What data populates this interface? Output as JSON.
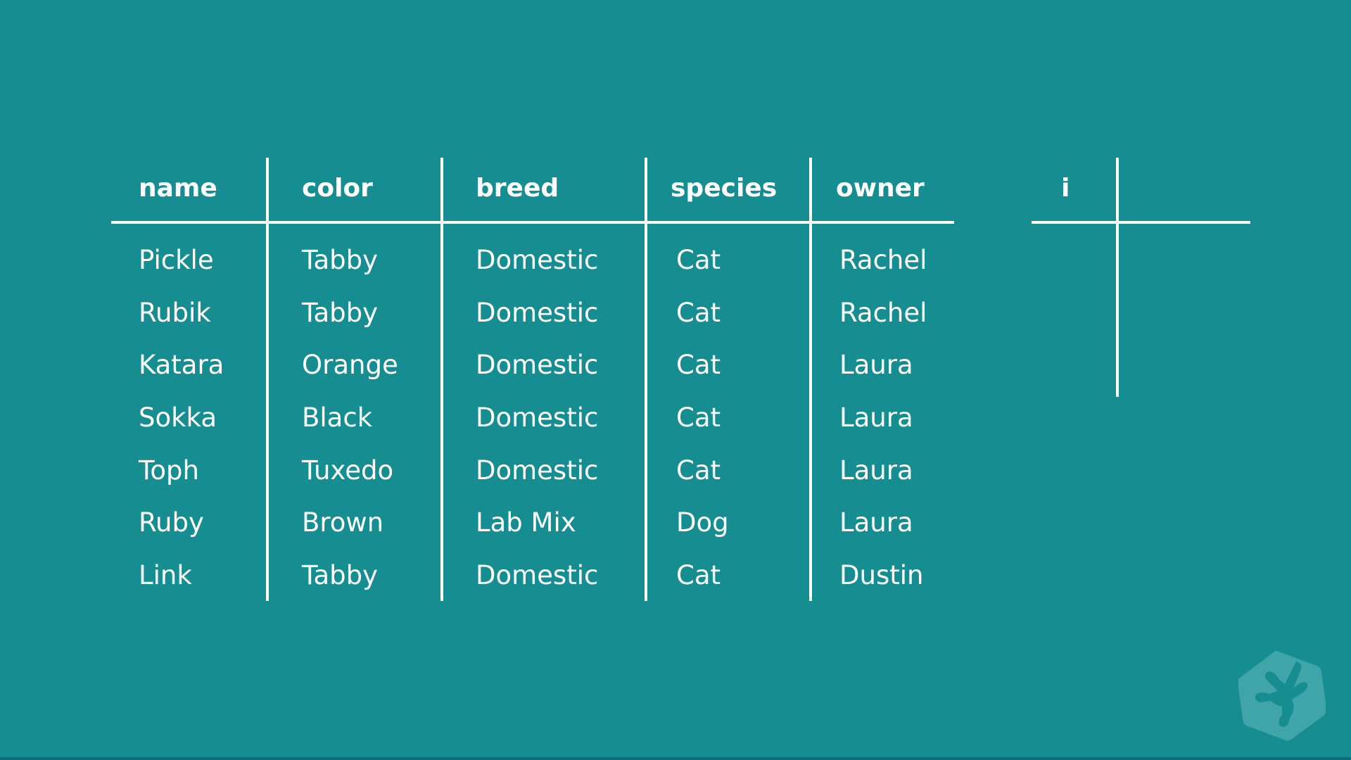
{
  "table": {
    "headers": [
      "name",
      "color",
      "breed",
      "species",
      "owner"
    ],
    "rows": [
      [
        "Pickle",
        "Tabby",
        "Domestic",
        "Cat",
        "Rachel"
      ],
      [
        "Rubik",
        "Tabby",
        "Domestic",
        "Cat",
        "Rachel"
      ],
      [
        "Katara",
        "Orange",
        "Domestic",
        "Cat",
        "Laura"
      ],
      [
        "Sokka",
        "Black",
        "Domestic",
        "Cat",
        "Laura"
      ],
      [
        "Toph",
        "Tuxedo",
        "Domestic",
        "Cat",
        "Laura"
      ],
      [
        "Ruby",
        "Brown",
        "Lab Mix",
        "Dog",
        "Laura"
      ],
      [
        "Link",
        "Tabby",
        "Domestic",
        "Cat",
        "Dustin"
      ]
    ]
  },
  "index_table": {
    "header": "i"
  },
  "colors": {
    "background": "#168e91",
    "lines": "#ffffff",
    "logo": "#3fa5a8"
  },
  "logo": {
    "icon": "treehouse-frog-hexagon-icon"
  }
}
